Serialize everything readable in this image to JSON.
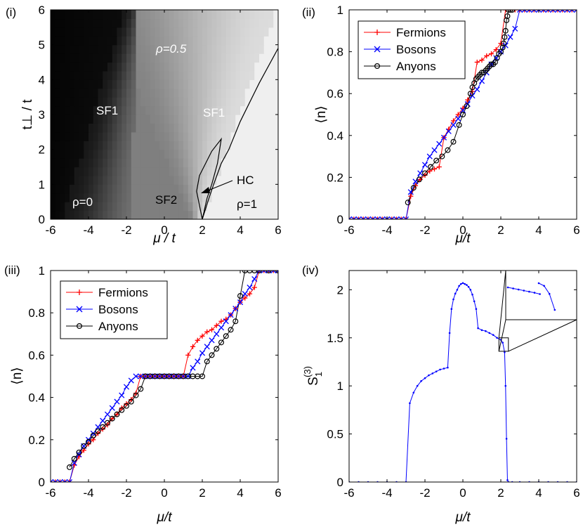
{
  "chart_data": [
    {
      "panel": "(i)",
      "type": "heatmap",
      "xlabel": "μ / t",
      "ylabel": "t⊥ / t",
      "xlim": [
        -6,
        6
      ],
      "ylim": [
        0,
        6
      ],
      "xticks": [
        "-6",
        "-4",
        "-2",
        "0",
        "2",
        "4",
        "6"
      ],
      "yticks": [
        "0",
        "1",
        "2",
        "3",
        "4",
        "5",
        "6"
      ],
      "regions": {
        "rho0": "ρ=0",
        "rho05": "ρ=0.5",
        "rho1": "ρ=1",
        "sf1_left": "SF1",
        "sf1_right": "SF1",
        "sf2": "SF2",
        "hc": "HC"
      },
      "grayscale": "black = 0, white = 1",
      "hc_boundary": [
        [
          2.0,
          0.0
        ],
        [
          2.35,
          0.6
        ],
        [
          2.6,
          1.0
        ],
        [
          3.0,
          1.6
        ],
        [
          3.4,
          2.0
        ],
        [
          4.0,
          2.8
        ],
        [
          5.0,
          3.9
        ],
        [
          6.0,
          4.9
        ]
      ],
      "hc_inner": [
        [
          2.0,
          0.0
        ],
        [
          1.7,
          0.8
        ],
        [
          1.85,
          1.25
        ],
        [
          2.5,
          1.95
        ],
        [
          3.0,
          2.3
        ],
        [
          2.8,
          1.6
        ],
        [
          2.5,
          1.0
        ],
        [
          2.25,
          0.6
        ],
        [
          2.0,
          0.0
        ]
      ]
    },
    {
      "panel": "(ii)",
      "type": "line",
      "xlabel": "μ/t",
      "ylabel": "⟨n⟩",
      "xlim": [
        -6,
        6
      ],
      "ylim": [
        0,
        1
      ],
      "xticks": [
        "-6",
        "-4",
        "-2",
        "0",
        "2",
        "4",
        "6"
      ],
      "yticks": [
        "0",
        "0.2",
        "0.4",
        "0.6",
        "0.8",
        "1"
      ],
      "legend_position": "top-left",
      "series": [
        {
          "name": "Fermions",
          "color": "#ff0000",
          "marker": "plus",
          "x": [
            -6.0,
            -5.75,
            -5.5,
            -5.25,
            -5.0,
            -4.75,
            -4.5,
            -4.25,
            -4.0,
            -3.75,
            -3.5,
            -3.25,
            -3.0,
            -2.75,
            -2.5,
            -2.25,
            -2.0,
            -1.75,
            -1.5,
            -1.25,
            -1.0,
            -0.75,
            -0.5,
            -0.25,
            0.0,
            0.25,
            0.5,
            0.75,
            1.0,
            1.25,
            1.5,
            1.75,
            2.0,
            2.25,
            2.5,
            2.75,
            3.0,
            3.25,
            3.5,
            3.75,
            4.0,
            4.25,
            4.5,
            4.75,
            5.0,
            5.25,
            5.5,
            5.75,
            6.0
          ],
          "y": [
            0,
            0,
            0,
            0,
            0,
            0,
            0,
            0,
            0,
            0,
            0,
            0,
            0,
            0.11,
            0.16,
            0.19,
            0.21,
            0.23,
            0.24,
            0.25,
            0.39,
            0.43,
            0.47,
            0.5,
            0.53,
            0.57,
            0.61,
            0.75,
            0.76,
            0.78,
            0.79,
            0.81,
            0.84,
            1.0,
            1.0,
            1.0,
            1.0,
            1.0,
            1.0,
            1.0,
            1.0,
            1.0,
            1.0,
            1.0,
            1.0,
            1.0,
            1.0,
            1.0,
            1.0
          ]
        },
        {
          "name": "Bosons",
          "color": "#0000ff",
          "marker": "cross",
          "x": [
            -6.0,
            -5.75,
            -5.5,
            -5.25,
            -5.0,
            -4.75,
            -4.5,
            -4.25,
            -4.0,
            -3.75,
            -3.5,
            -3.25,
            -3.0,
            -2.75,
            -2.5,
            -2.25,
            -2.0,
            -1.75,
            -1.5,
            -1.25,
            -1.0,
            -0.75,
            -0.5,
            -0.25,
            0.0,
            0.25,
            0.5,
            0.75,
            1.0,
            1.25,
            1.5,
            1.75,
            2.0,
            2.25,
            2.5,
            2.75,
            3.0,
            3.25,
            3.5,
            3.75,
            4.0,
            4.25,
            4.5,
            4.75,
            5.0,
            5.25,
            5.5,
            5.75,
            6.0
          ],
          "y": [
            0,
            0,
            0,
            0,
            0,
            0,
            0,
            0,
            0,
            0,
            0,
            0,
            0,
            0.13,
            0.18,
            0.22,
            0.26,
            0.3,
            0.33,
            0.36,
            0.39,
            0.42,
            0.45,
            0.48,
            0.52,
            0.55,
            0.59,
            0.62,
            0.66,
            0.7,
            0.74,
            0.77,
            0.8,
            0.83,
            0.87,
            0.91,
            1.0,
            1.0,
            1.0,
            1.0,
            1.0,
            1.0,
            1.0,
            1.0,
            1.0,
            1.0,
            1.0,
            1.0,
            1.0
          ]
        },
        {
          "name": "Anyons",
          "color": "#000000",
          "marker": "circle",
          "x": [
            -2.9,
            -2.6,
            -2.3,
            -2.0,
            -1.7,
            -1.4,
            -1.1,
            -0.8,
            -0.5,
            -0.2,
            0.0,
            0.2,
            0.4,
            0.5,
            0.6,
            0.7,
            0.8,
            0.9,
            1.0,
            1.1,
            1.2,
            1.3,
            1.4,
            1.5,
            1.6,
            1.7,
            1.8,
            1.9,
            2.0,
            2.1,
            2.15,
            2.2,
            2.25,
            2.3,
            2.35,
            2.4,
            2.5,
            2.6
          ],
          "y": [
            0.08,
            0.15,
            0.19,
            0.22,
            0.25,
            0.28,
            0.3,
            0.33,
            0.37,
            0.45,
            0.5,
            0.54,
            0.6,
            0.63,
            0.65,
            0.67,
            0.68,
            0.69,
            0.7,
            0.7,
            0.71,
            0.72,
            0.73,
            0.74,
            0.74,
            0.75,
            0.77,
            0.79,
            0.8,
            0.82,
            0.84,
            0.87,
            0.9,
            0.95,
            0.97,
            1.0,
            1.0,
            1.0
          ]
        }
      ]
    },
    {
      "panel": "(iii)",
      "type": "line",
      "xlabel": "μ/t",
      "ylabel": "⟨n⟩",
      "xlim": [
        -6,
        6
      ],
      "ylim": [
        0,
        1
      ],
      "xticks": [
        "-6",
        "-4",
        "-2",
        "0",
        "2",
        "4",
        "6"
      ],
      "yticks": [
        "0",
        "0.2",
        "0.4",
        "0.6",
        "0.8",
        "1"
      ],
      "legend_position": "top-left",
      "series": [
        {
          "name": "Fermions",
          "color": "#ff0000",
          "marker": "plus",
          "x": [
            -6.0,
            -5.75,
            -5.5,
            -5.25,
            -5.0,
            -4.75,
            -4.5,
            -4.25,
            -4.0,
            -3.75,
            -3.5,
            -3.25,
            -3.0,
            -2.75,
            -2.5,
            -2.25,
            -2.0,
            -1.75,
            -1.5,
            -1.25,
            -1.0,
            -0.75,
            -0.5,
            -0.25,
            0.0,
            0.25,
            0.5,
            0.75,
            1.0,
            1.25,
            1.5,
            1.75,
            2.0,
            2.25,
            2.5,
            2.75,
            3.0,
            3.25,
            3.5,
            3.75,
            4.0,
            4.25,
            4.5,
            4.75,
            5.0,
            5.25,
            5.5,
            5.75,
            6.0
          ],
          "y": [
            0,
            0,
            0,
            0,
            0,
            0.08,
            0.12,
            0.15,
            0.18,
            0.2,
            0.23,
            0.25,
            0.27,
            0.3,
            0.32,
            0.35,
            0.37,
            0.39,
            0.42,
            0.5,
            0.5,
            0.5,
            0.5,
            0.5,
            0.5,
            0.5,
            0.5,
            0.5,
            0.5,
            0.6,
            0.64,
            0.67,
            0.69,
            0.71,
            0.72,
            0.74,
            0.76,
            0.77,
            0.79,
            0.82,
            0.85,
            0.87,
            0.89,
            0.92,
            1.0,
            1.0,
            1.0,
            1.0,
            1.0
          ]
        },
        {
          "name": "Bosons",
          "color": "#0000ff",
          "marker": "cross",
          "x": [
            -6.0,
            -5.75,
            -5.5,
            -5.25,
            -5.0,
            -4.75,
            -4.5,
            -4.25,
            -4.0,
            -3.75,
            -3.5,
            -3.25,
            -3.0,
            -2.75,
            -2.5,
            -2.25,
            -2.0,
            -1.75,
            -1.5,
            -1.25,
            -1.0,
            -0.75,
            -0.5,
            -0.25,
            0.0,
            0.25,
            0.5,
            0.75,
            1.0,
            1.25,
            1.5,
            1.75,
            2.0,
            2.25,
            2.5,
            2.75,
            3.0,
            3.25,
            3.5,
            3.75,
            4.0,
            4.25,
            4.5,
            4.75,
            5.0,
            5.25,
            5.5,
            5.75,
            6.0
          ],
          "y": [
            0,
            0,
            0,
            0,
            0,
            0.09,
            0.13,
            0.17,
            0.2,
            0.23,
            0.26,
            0.29,
            0.32,
            0.35,
            0.38,
            0.41,
            0.45,
            0.48,
            0.5,
            0.5,
            0.5,
            0.5,
            0.5,
            0.5,
            0.5,
            0.5,
            0.5,
            0.5,
            0.5,
            0.5,
            0.54,
            0.57,
            0.61,
            0.64,
            0.67,
            0.7,
            0.73,
            0.76,
            0.79,
            0.82,
            0.85,
            0.89,
            0.92,
            0.96,
            1.0,
            1.0,
            1.0,
            1.0,
            1.0
          ]
        },
        {
          "name": "Anyons",
          "color": "#000000",
          "marker": "circle",
          "x": [
            -5.0,
            -4.75,
            -4.5,
            -4.25,
            -4.0,
            -3.75,
            -3.5,
            -3.25,
            -3.0,
            -2.75,
            -2.5,
            -2.25,
            -2.0,
            -1.75,
            -1.5,
            -1.25,
            -1.0,
            -0.75,
            -0.5,
            -0.25,
            0.0,
            0.25,
            0.5,
            0.75,
            1.0,
            1.25,
            1.5,
            1.75,
            2.0,
            2.25,
            2.5,
            2.75,
            3.0,
            3.25,
            3.5,
            3.75,
            4.0,
            4.25,
            4.5,
            4.75,
            5.0,
            5.5,
            6.0
          ],
          "y": [
            0.07,
            0.11,
            0.14,
            0.17,
            0.19,
            0.22,
            0.24,
            0.26,
            0.28,
            0.3,
            0.32,
            0.34,
            0.36,
            0.38,
            0.41,
            0.44,
            0.5,
            0.5,
            0.5,
            0.5,
            0.5,
            0.5,
            0.5,
            0.5,
            0.5,
            0.5,
            0.5,
            0.5,
            0.5,
            0.57,
            0.6,
            0.63,
            0.66,
            0.69,
            0.72,
            0.76,
            0.88,
            1.0,
            1.0,
            1.0,
            1.0,
            1.0,
            1.0
          ]
        }
      ]
    },
    {
      "panel": "(iv)",
      "type": "line",
      "xlabel": "μ/t",
      "ylabel": "S1(3)",
      "ylabel_main": "S",
      "ylabel_sub": "1",
      "ylabel_sup": "(3)",
      "xlim": [
        -6,
        6
      ],
      "ylim": [
        0,
        2.2
      ],
      "xticks": [
        "-6",
        "-4",
        "-2",
        "0",
        "2",
        "4",
        "6"
      ],
      "yticks": [
        "0",
        "0.5",
        "1",
        "1.5",
        "2"
      ],
      "series": [
        {
          "name": "",
          "color": "#0000ff",
          "marker": "dot",
          "x": [
            -6.0,
            -5.5,
            -5.0,
            -4.5,
            -4.0,
            -3.5,
            -3.0,
            -2.8,
            -2.6,
            -2.4,
            -2.2,
            -2.0,
            -1.8,
            -1.6,
            -1.4,
            -1.2,
            -1.0,
            -0.8,
            -0.7,
            -0.6,
            -0.5,
            -0.4,
            -0.3,
            -0.2,
            -0.1,
            0.0,
            0.1,
            0.2,
            0.3,
            0.4,
            0.5,
            0.6,
            0.7,
            0.8,
            1.0,
            1.2,
            1.4,
            1.6,
            1.8,
            2.0,
            2.1,
            2.2,
            2.25,
            2.3,
            2.35,
            2.4,
            2.6,
            3.0,
            3.5,
            4.0,
            4.5,
            5.0,
            5.5,
            6.0
          ],
          "y": [
            0,
            0,
            0,
            0,
            0,
            0,
            0,
            0.82,
            0.93,
            1.0,
            1.05,
            1.08,
            1.11,
            1.13,
            1.15,
            1.17,
            1.18,
            1.19,
            1.55,
            1.8,
            1.9,
            1.96,
            2.0,
            2.04,
            2.06,
            2.07,
            2.06,
            2.05,
            2.03,
            2.0,
            1.95,
            1.88,
            1.8,
            1.6,
            1.58,
            1.57,
            1.55,
            1.53,
            1.5,
            1.48,
            1.45,
            1.35,
            1.0,
            0.45,
            0.02,
            0,
            0,
            0,
            0,
            0,
            0,
            0,
            0,
            0
          ]
        }
      ],
      "inset": {
        "zoom_box": {
          "x": [
            1.9,
            2.4
          ],
          "y": [
            1.36,
            1.5
          ]
        },
        "series_left": [
          [
            0,
            0
          ],
          [
            0.02,
            -0.004
          ],
          [
            0.04,
            -0.008
          ],
          [
            0.06,
            -0.012
          ],
          [
            0.08,
            -0.016
          ],
          [
            0.1,
            -0.02
          ],
          [
            0.12,
            -0.025
          ]
        ],
        "series_right": [
          [
            0,
            0
          ],
          [
            0.02,
            -0.01
          ],
          [
            0.04,
            -0.04
          ],
          [
            0.06,
            -0.1
          ]
        ]
      }
    }
  ]
}
